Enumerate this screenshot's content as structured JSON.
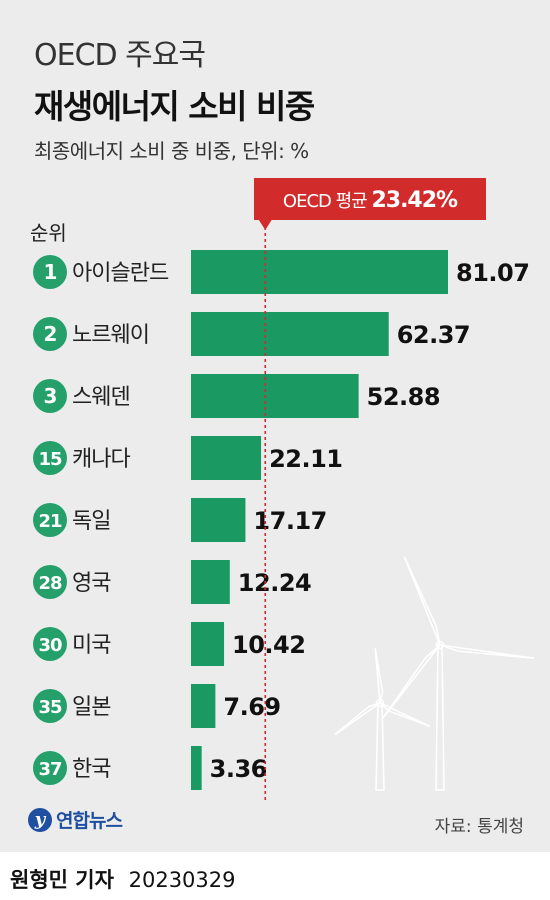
{
  "title_line1": "OECD 주요국",
  "title_line2": "재생에너지 소비 비중",
  "subtitle": "최종에너지 소비 중 비중, 단위: %",
  "rank_header": "순위",
  "average_label_prefix": "OECD 평균 ",
  "average_value_text": "23.42%",
  "source": "자료: 통계청",
  "logo_text": "연합뉴스",
  "logo_mark": "y",
  "reporter": "원형민 기자",
  "date": "20230329",
  "colors": {
    "bar": "#1a9962",
    "rank_circle": "#25a06b",
    "average": "#d22b2b",
    "background": "#ececec"
  },
  "chart_data": {
    "type": "bar",
    "orientation": "horizontal",
    "categories": [
      "아이슬란드",
      "노르웨이",
      "스웨덴",
      "캐나다",
      "독일",
      "영국",
      "미국",
      "일본",
      "한국"
    ],
    "ranks": [
      "1",
      "2",
      "3",
      "15",
      "21",
      "28",
      "30",
      "35",
      "37"
    ],
    "values": [
      81.07,
      62.37,
      52.88,
      22.11,
      17.17,
      12.24,
      10.42,
      7.69,
      3.36
    ],
    "value_labels": [
      "81.07",
      "62.37",
      "52.88",
      "22.11",
      "17.17",
      "12.24",
      "10.42",
      "7.69",
      "3.36"
    ],
    "average": 23.42,
    "title": "재생에너지 소비 비중",
    "xlim": [
      0,
      81.07
    ]
  }
}
